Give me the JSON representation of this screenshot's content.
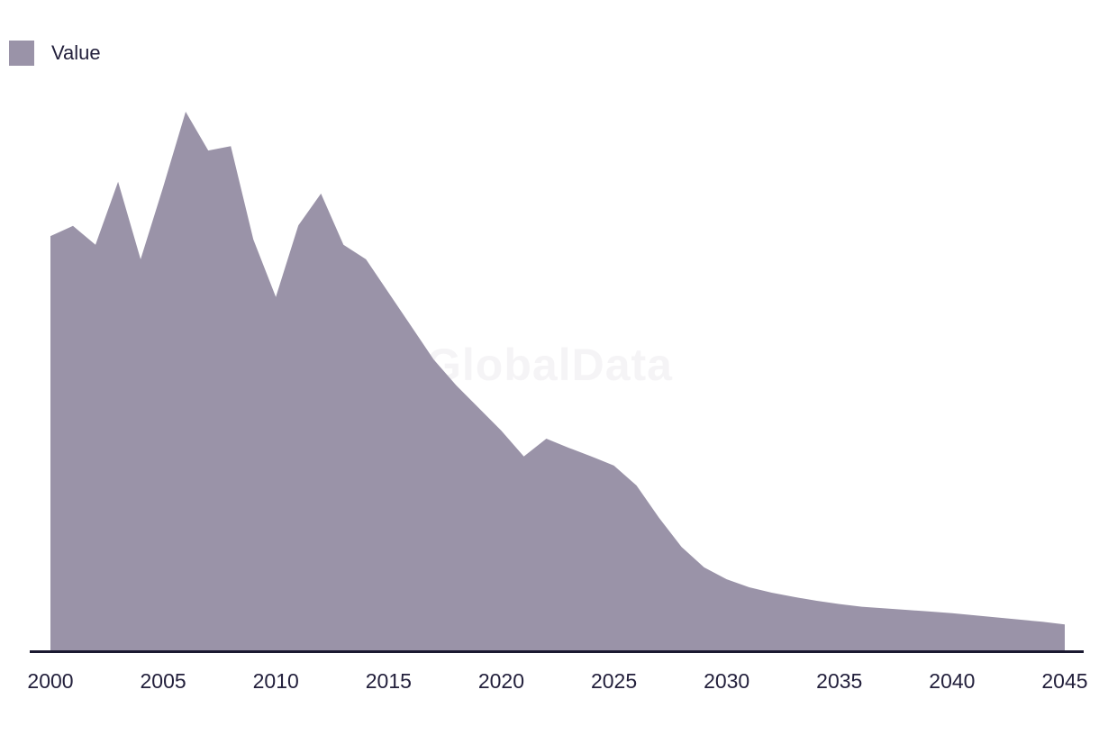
{
  "legend": {
    "items": [
      {
        "label": "Value",
        "color": "#9a93a8"
      }
    ]
  },
  "watermark": {
    "text": "GlobalData"
  },
  "colors": {
    "series_fill": "#9a93a8",
    "axis_line": "#1a1930",
    "tick_text": "#23203c",
    "watermark_text": "#f5f4f6",
    "background": "#ffffff"
  },
  "chart_data": {
    "type": "area",
    "title": "",
    "xlabel": "",
    "ylabel": "",
    "legend_position": "top-left",
    "grid": false,
    "y_axis_visible": false,
    "x_range": [
      2000,
      2045
    ],
    "ylim": [
      0,
      105
    ],
    "x_tick_labels": [
      "2000",
      "2005",
      "2010",
      "2015",
      "2020",
      "2025",
      "2030",
      "2035",
      "2040",
      "2045"
    ],
    "series": [
      {
        "name": "Value",
        "color": "#9a93a8",
        "x": [
          2000,
          2001,
          2002,
          2003,
          2004,
          2005,
          2006,
          2007,
          2008,
          2009,
          2010,
          2011,
          2012,
          2013,
          2014,
          2015,
          2016,
          2017,
          2018,
          2019,
          2020,
          2021,
          2022,
          2023,
          2024,
          2025,
          2026,
          2027,
          2028,
          2029,
          2030,
          2031,
          2032,
          2033,
          2034,
          2035,
          2036,
          2037,
          2038,
          2039,
          2040,
          2041,
          2042,
          2043,
          2044,
          2045
        ],
        "values": [
          76.9,
          78.8,
          75.3,
          87.0,
          72.6,
          86.0,
          100.0,
          92.8,
          93.6,
          76.3,
          65.6,
          78.9,
          84.8,
          75.3,
          72.6,
          66.4,
          60.2,
          54.0,
          49.2,
          45.0,
          40.8,
          36.0,
          39.3,
          37.6,
          36.0,
          34.3,
          30.6,
          24.6,
          19.2,
          15.4,
          13.2,
          11.7,
          10.7,
          9.9,
          9.2,
          8.6,
          8.1,
          7.8,
          7.5,
          7.2,
          6.9,
          6.5,
          6.1,
          5.7,
          5.3,
          4.8
        ]
      }
    ]
  }
}
